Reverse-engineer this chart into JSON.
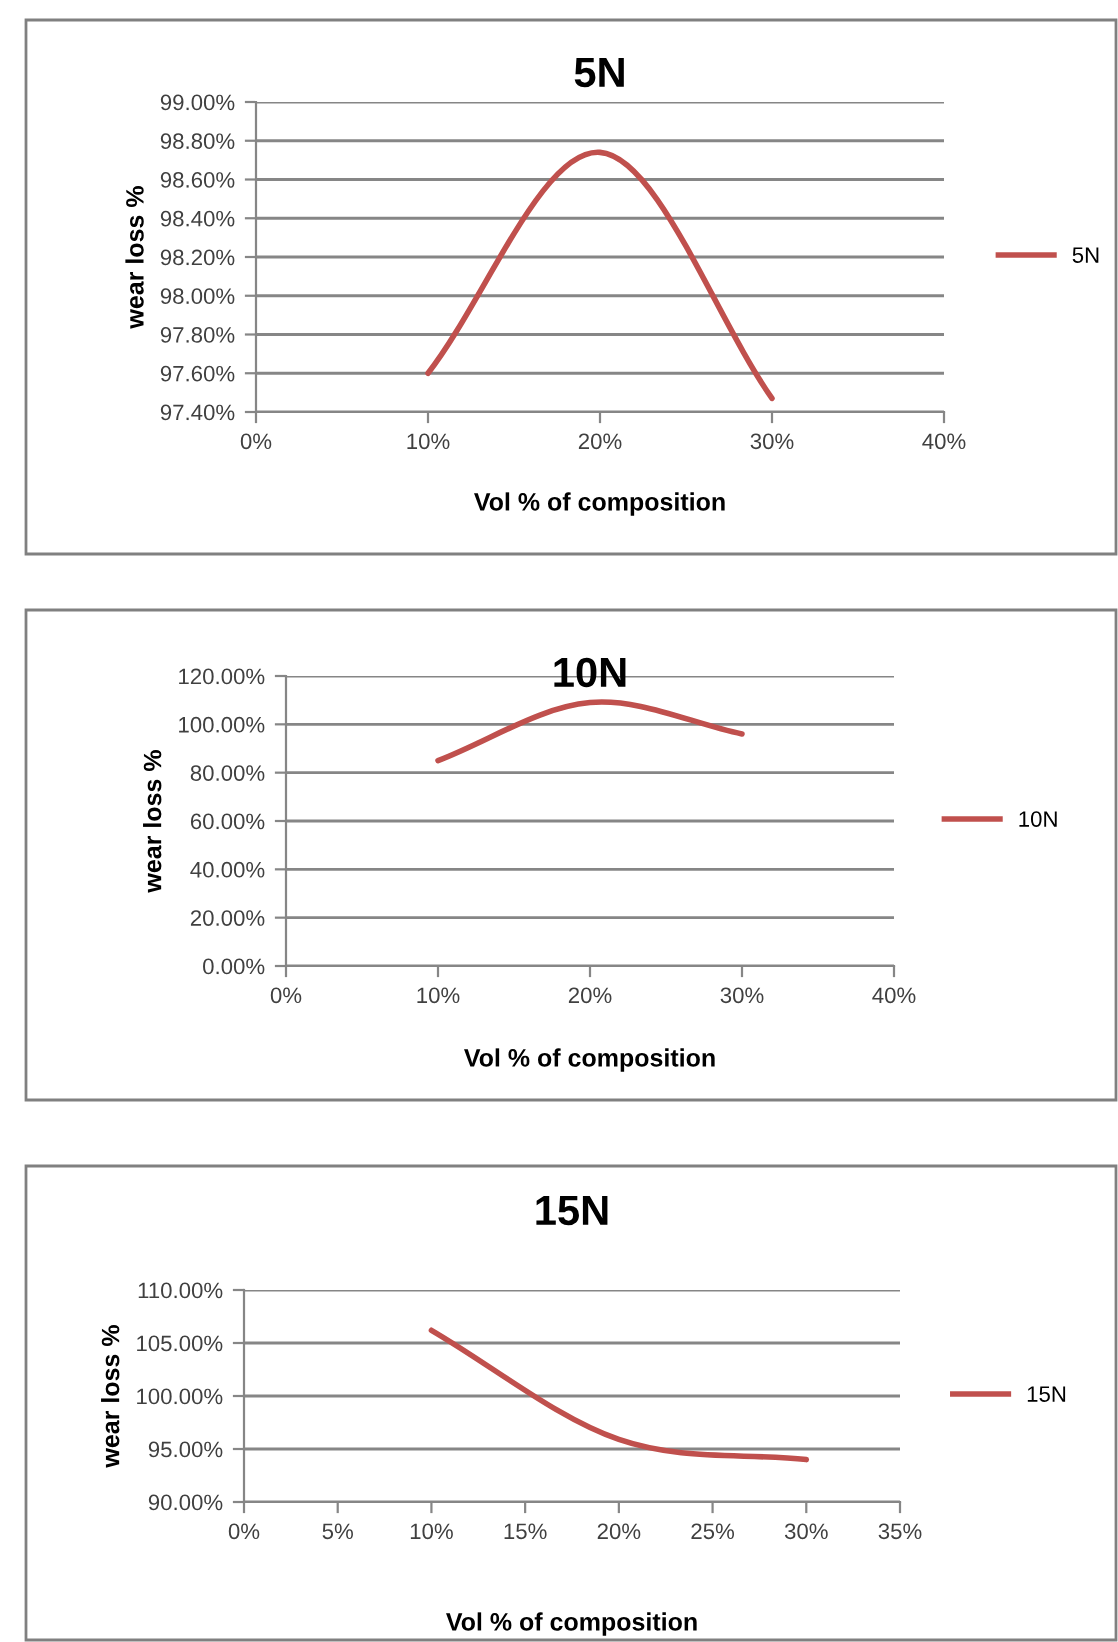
{
  "chart_data": [
    {
      "type": "line",
      "title": "5N",
      "xlabel": "Vol % of composition",
      "ylabel": "wear loss %",
      "x": [
        10,
        20,
        30
      ],
      "series": [
        {
          "name": "5N",
          "color": "#c0504d",
          "values": [
            97.6,
            98.74,
            97.47
          ]
        }
      ],
      "xlim": [
        0,
        40
      ],
      "xticks": [
        {
          "value": 0,
          "label": "0%"
        },
        {
          "value": 10,
          "label": "10%"
        },
        {
          "value": 20,
          "label": "20%"
        },
        {
          "value": 30,
          "label": "30%"
        },
        {
          "value": 40,
          "label": "40%"
        }
      ],
      "ylim": [
        97.4,
        99.0
      ],
      "yticks": [
        {
          "value": 97.4,
          "label": "97.40%"
        },
        {
          "value": 97.6,
          "label": "97.60%"
        },
        {
          "value": 97.8,
          "label": "97.80%"
        },
        {
          "value": 98.0,
          "label": "98.00%"
        },
        {
          "value": 98.2,
          "label": "98.20%"
        },
        {
          "value": 98.4,
          "label": "98.40%"
        },
        {
          "value": 98.6,
          "label": "98.60%"
        },
        {
          "value": 98.8,
          "label": "98.80%"
        },
        {
          "value": 99.0,
          "label": "99.00%"
        }
      ],
      "grid": "y",
      "legend": "right",
      "line_style": "solid",
      "marker": "none"
    },
    {
      "type": "line",
      "title": "10N",
      "xlabel": "Vol % of composition",
      "ylabel": "wear loss %",
      "x": [
        10,
        20,
        30
      ],
      "series": [
        {
          "name": "10N",
          "color": "#c0504d",
          "values": [
            85,
            109,
            96
          ]
        }
      ],
      "xlim": [
        0,
        40
      ],
      "xticks": [
        {
          "value": 0,
          "label": "0%"
        },
        {
          "value": 10,
          "label": "10%"
        },
        {
          "value": 20,
          "label": "20%"
        },
        {
          "value": 30,
          "label": "30%"
        },
        {
          "value": 40,
          "label": "40%"
        }
      ],
      "ylim": [
        0,
        120
      ],
      "yticks": [
        {
          "value": 0,
          "label": "0.00%"
        },
        {
          "value": 20,
          "label": "20.00%"
        },
        {
          "value": 40,
          "label": "40.00%"
        },
        {
          "value": 60,
          "label": "60.00%"
        },
        {
          "value": 80,
          "label": "80.00%"
        },
        {
          "value": 100,
          "label": "100.00%"
        },
        {
          "value": 120,
          "label": "120.00%"
        }
      ],
      "grid": "y",
      "legend": "right",
      "line_style": "solid",
      "marker": "none"
    },
    {
      "type": "line",
      "title": "15N",
      "xlabel": "Vol % of composition",
      "ylabel": "wear loss %",
      "x": [
        10,
        20,
        30
      ],
      "series": [
        {
          "name": "15N",
          "color": "#c0504d",
          "values": [
            106.2,
            95.9,
            94.0
          ]
        }
      ],
      "xlim": [
        0,
        35
      ],
      "xticks": [
        {
          "value": 0,
          "label": "0%"
        },
        {
          "value": 5,
          "label": "5%"
        },
        {
          "value": 10,
          "label": "10%"
        },
        {
          "value": 15,
          "label": "15%"
        },
        {
          "value": 20,
          "label": "20%"
        },
        {
          "value": 25,
          "label": "25%"
        },
        {
          "value": 30,
          "label": "30%"
        },
        {
          "value": 35,
          "label": "35%"
        }
      ],
      "ylim": [
        90,
        110
      ],
      "yticks": [
        {
          "value": 90,
          "label": "90.00%"
        },
        {
          "value": 95,
          "label": "95.00%"
        },
        {
          "value": 100,
          "label": "100.00%"
        },
        {
          "value": 105,
          "label": "105.00%"
        },
        {
          "value": 110,
          "label": "110.00%"
        }
      ],
      "grid": "y",
      "legend": "right",
      "line_style": "solid",
      "marker": "none"
    }
  ]
}
